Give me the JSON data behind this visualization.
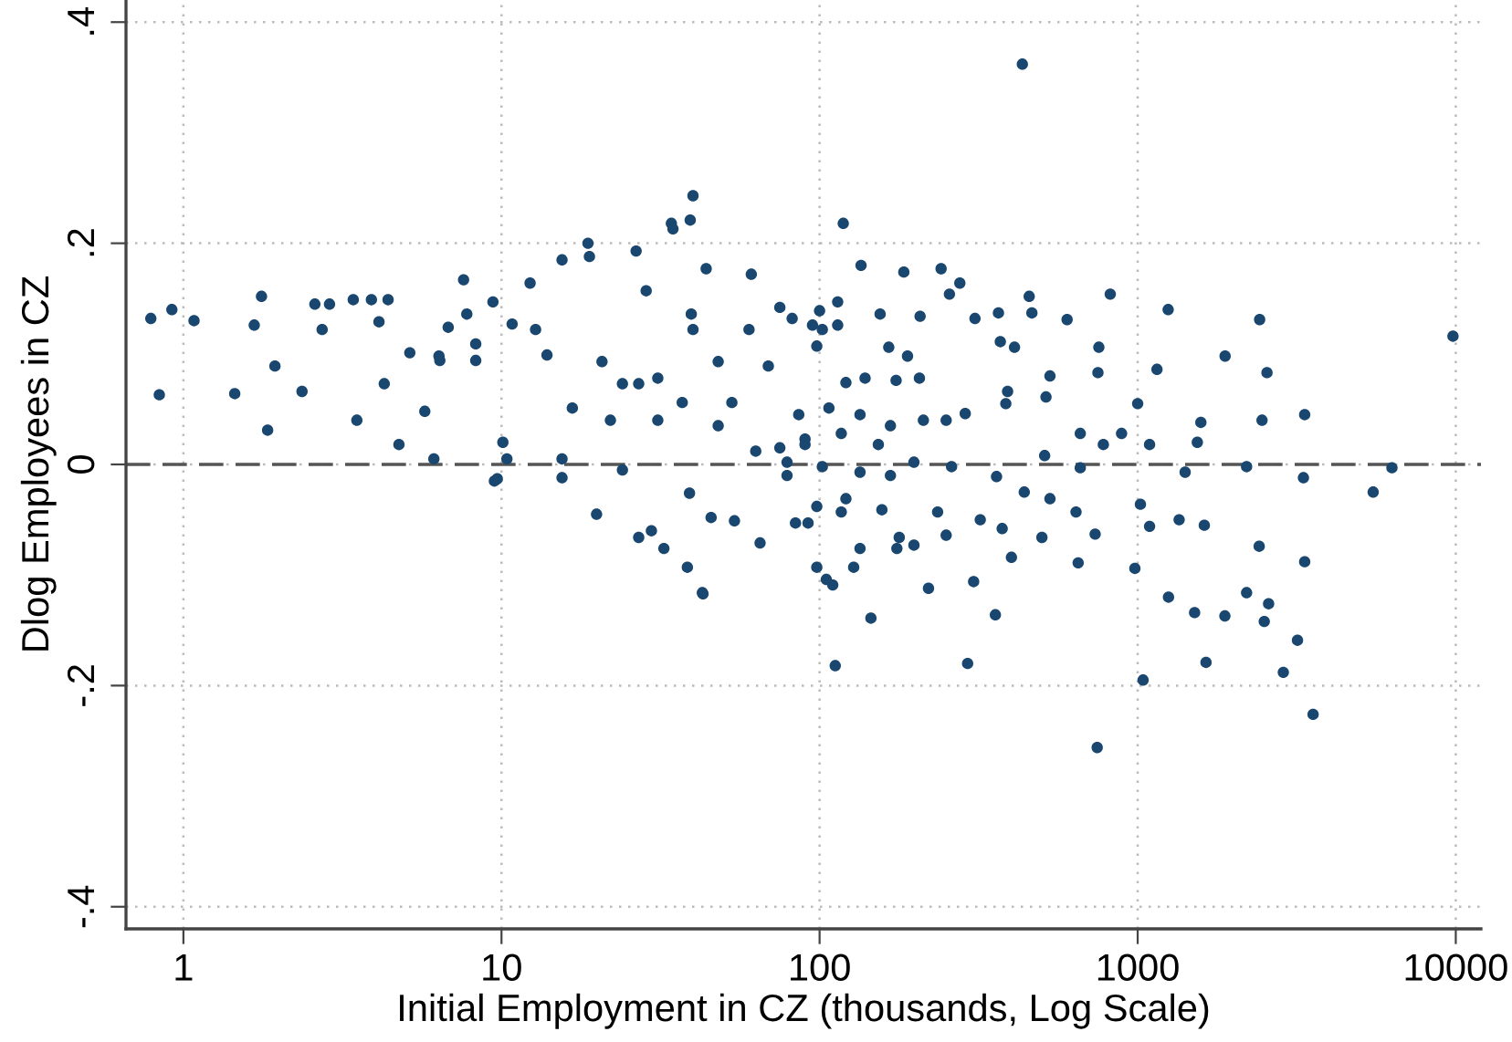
{
  "chart_data": {
    "type": "scatter",
    "xlabel": "Initial Employment in CZ (thousands, Log Scale)",
    "ylabel": "Dlog Employees in CZ",
    "log": "x",
    "grid": true,
    "marker": "circle",
    "xlim": [
      0.66,
      12000
    ],
    "xticks": [
      1,
      10,
      100,
      1000,
      10000
    ],
    "ylim": [
      -0.42,
      0.42
    ],
    "yticks": [
      {
        "value": -0.4,
        "label": "-.4"
      },
      {
        "value": -0.2,
        "label": "-.2"
      },
      0,
      {
        "value": 0.2,
        "label": ".2"
      },
      {
        "value": 0.4,
        "label": ".4"
      }
    ],
    "ref_lines": [
      {
        "axis": "y",
        "value": 0,
        "line_style": "dashed",
        "color": "#555555"
      }
    ],
    "series": [
      {
        "color": "#1a476f",
        "x": [
          0.79,
          0.84,
          0.92,
          1.08,
          1.45,
          1.67,
          1.76,
          1.84,
          1.94,
          2.36,
          2.59,
          2.73,
          2.88,
          3.42,
          3.51,
          3.9,
          4.12,
          4.4,
          4.28,
          4.76,
          5.15,
          5.74,
          6.36,
          6.8,
          6.13,
          7.78,
          8.3,
          9.4,
          10.1,
          9.7,
          12.3,
          13.9,
          15.5,
          18.9,
          18.7,
          19.9,
          20.7,
          26.5,
          28.5,
          29.6,
          32.4,
          34.2,
          39.2,
          40,
          45.6,
          42.8,
          38.4,
          24,
          31,
          40,
          53,
          69,
          79,
          90,
          61,
          100,
          117,
          134,
          110,
          175,
          165,
          118.7,
          135,
          184,
          241,
          276,
          112,
          145,
          292,
          746,
          305,
          357,
          401,
          820,
          755,
          1247,
          2418,
          9800,
          1883,
          2550,
          1150,
          3350,
          2460,
          1580,
          1000,
          1090,
          1540,
          2200,
          6300,
          5500,
          3320,
          1410,
          1020,
          1090,
          1350,
          1620,
          2410,
          3350,
          980,
          1250,
          1510,
          1880,
          2200,
          2580,
          2500,
          3180,
          1640,
          2870,
          1040,
          3560,
          735,
          650,
          500,
          660,
          890,
          780,
          510,
          660,
          440,
          530,
          640,
          515,
          530,
          456,
          465,
          600,
          750,
          385,
          370,
          410,
          390,
          360,
          320,
          375,
          235,
          250,
          220,
          178,
          198,
          128,
          105,
          98,
          92,
          256,
          365,
          308,
          189,
          155,
          207,
          114,
          75,
          82,
          95,
          102,
          98,
          114,
          121,
          139,
          174,
          206,
          287,
          250,
          212,
          167,
          134,
          107,
          86,
          75,
          90,
          117,
          153,
          198,
          260,
          79,
          102,
          134,
          167,
          121,
          98,
          84,
          157,
          34.6,
          44,
          15.5,
          7.6,
          27,
          43,
          65,
          54,
          39,
          24,
          15.5,
          9.5,
          10.4,
          27,
          37,
          48,
          63,
          22,
          16.7,
          12.8,
          10.8,
          8.3,
          6.4,
          48,
          60,
          39.5,
          31,
          434
        ],
        "values": [
          0.132,
          0.063,
          0.14,
          0.13,
          0.064,
          0.126,
          0.152,
          0.031,
          0.089,
          0.066,
          0.145,
          0.122,
          0.145,
          0.149,
          0.04,
          0.149,
          0.129,
          0.149,
          0.073,
          0.018,
          0.101,
          0.048,
          0.098,
          0.124,
          0.005,
          0.136,
          0.109,
          0.147,
          0.02,
          -0.013,
          0.164,
          0.099,
          0.005,
          0.188,
          0.2,
          -0.045,
          0.093,
          0.193,
          0.157,
          -0.06,
          -0.076,
          0.218,
          0.221,
          0.243,
          -0.048,
          -0.116,
          -0.093,
          0.073,
          0.04,
          0.122,
          0.056,
          0.089,
          -0.01,
          0.023,
          0.172,
          0.139,
          -0.043,
          -0.076,
          -0.109,
          -0.076,
          0.106,
          0.218,
          0.18,
          0.174,
          0.177,
          0.164,
          -0.182,
          -0.139,
          -0.18,
          -0.256,
          -0.106,
          -0.136,
          -0.084,
          0.154,
          0.106,
          0.14,
          0.131,
          0.116,
          0.098,
          0.083,
          0.086,
          0.045,
          0.04,
          0.038,
          0.055,
          0.018,
          0.02,
          -0.002,
          -0.003,
          -0.025,
          -0.012,
          -0.007,
          -0.036,
          -0.056,
          -0.05,
          -0.055,
          -0.074,
          -0.088,
          -0.094,
          -0.12,
          -0.134,
          -0.137,
          -0.116,
          -0.126,
          -0.142,
          -0.159,
          -0.179,
          -0.188,
          -0.195,
          -0.226,
          -0.063,
          -0.089,
          -0.066,
          0.028,
          0.028,
          0.018,
          0.008,
          -0.003,
          -0.025,
          -0.031,
          -0.043,
          0.061,
          0.08,
          0.152,
          0.137,
          0.131,
          0.083,
          0.055,
          0.111,
          0.106,
          0.066,
          -0.011,
          -0.05,
          -0.058,
          -0.043,
          -0.064,
          -0.112,
          -0.066,
          -0.073,
          -0.093,
          -0.104,
          -0.093,
          -0.053,
          0.154,
          0.137,
          0.132,
          0.098,
          0.136,
          0.134,
          0.147,
          0.142,
          0.132,
          0.126,
          0.122,
          0.107,
          0.126,
          0.074,
          0.078,
          0.076,
          0.078,
          0.046,
          0.04,
          0.04,
          0.035,
          0.045,
          0.051,
          0.045,
          0.015,
          0.018,
          0.028,
          0.018,
          0.002,
          -0.002,
          0.002,
          -0.002,
          -0.007,
          -0.01,
          -0.031,
          -0.038,
          -0.053,
          -0.041,
          0.213,
          0.177,
          0.185,
          0.167,
          -0.066,
          -0.117,
          -0.071,
          -0.051,
          -0.026,
          -0.005,
          -0.012,
          -0.015,
          0.005,
          0.073,
          0.056,
          0.035,
          0.012,
          0.04,
          0.051,
          0.122,
          0.127,
          0.094,
          0.094,
          0.093,
          0.122,
          0.136,
          0.078,
          0.362
        ]
      }
    ]
  }
}
